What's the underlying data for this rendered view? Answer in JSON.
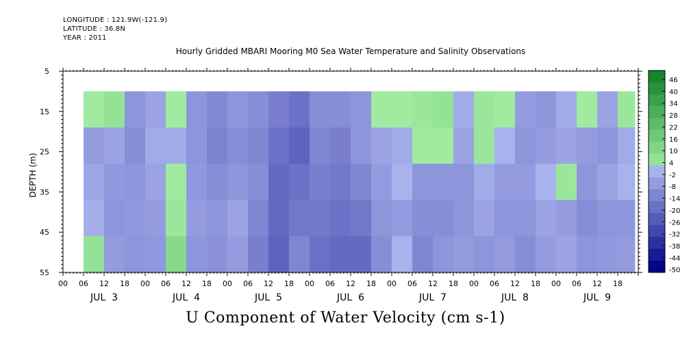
{
  "meta": {
    "longitude": "LONGITUDE : 121.9W(-121.9)",
    "latitude": "LATITUDE : 36.8N",
    "year": "YEAR : 2011"
  },
  "chart_data": {
    "type": "heatmap",
    "title": "Hourly Gridded MBARI Mooring M0 Sea Water Temperature and Salinity Observations",
    "variable_label": "U Component of Water Velocity (cm s-1)",
    "ylabel": "DEPTH (m)",
    "ylim": [
      55,
      5
    ],
    "y_ticks": [
      5,
      15,
      25,
      35,
      45,
      55
    ],
    "x_hour_ticks": [
      "00",
      "06",
      "12",
      "18",
      "00",
      "06",
      "12",
      "18",
      "00",
      "06",
      "12",
      "18",
      "00",
      "06",
      "12",
      "18",
      "00",
      "06",
      "12",
      "18",
      "00",
      "06",
      "12",
      "18",
      "00",
      "06",
      "12",
      "18"
    ],
    "x_day_labels": [
      "JUL  3",
      "JUL  4",
      "JUL  5",
      "JUL  6",
      "JUL  7",
      "JUL  8",
      "JUL  9"
    ],
    "colorbar": {
      "ticks": [
        "46",
        "40",
        "34",
        "28",
        "22",
        "16",
        "10",
        "4",
        "-2",
        "-8",
        "-14",
        "-20",
        "-26",
        "-32",
        "-38",
        "-44",
        "-50"
      ],
      "range": [
        -50,
        50
      ],
      "step": 6
    },
    "data_extent": {
      "depth_top_m": 10,
      "depth_bottom_m": 55,
      "start": "JUL 3 06:00",
      "end": "JUL 9 23:00"
    },
    "columns": [
      {
        "t": "JUL 3 06",
        "u": [
          0,
          -8,
          -5,
          -3,
          4
        ]
      },
      {
        "t": "JUL 3 12",
        "u": [
          4,
          -6,
          -9,
          -10,
          -8
        ]
      },
      {
        "t": "JUL 3 18",
        "u": [
          -10,
          -12,
          -10,
          -9,
          -10
        ]
      },
      {
        "t": "JUL 4 00",
        "u": [
          -6,
          -4,
          -6,
          -8,
          -9
        ]
      },
      {
        "t": "JUL 4 06",
        "u": [
          0,
          -4,
          0,
          2,
          8
        ]
      },
      {
        "t": "JUL 4 12",
        "u": [
          -10,
          -10,
          -9,
          -8,
          -10
        ]
      },
      {
        "t": "JUL 4 18",
        "u": [
          -13,
          -15,
          -12,
          -10,
          -11
        ]
      },
      {
        "t": "JUL 5 00",
        "u": [
          -10,
          -12,
          -10,
          -6,
          -8
        ]
      },
      {
        "t": "JUL 5 06",
        "u": [
          -12,
          -14,
          -12,
          -14,
          -16
        ]
      },
      {
        "t": "JUL 5 12",
        "u": [
          -16,
          -20,
          -22,
          -22,
          -24
        ]
      },
      {
        "t": "JUL 5 18",
        "u": [
          -20,
          -24,
          -20,
          -18,
          -14
        ]
      },
      {
        "t": "JUL 6 00",
        "u": [
          -12,
          -14,
          -16,
          -18,
          -20
        ]
      },
      {
        "t": "JUL 6 06",
        "u": [
          -12,
          -16,
          -18,
          -20,
          -22
        ]
      },
      {
        "t": "JUL 6 12",
        "u": [
          -10,
          -10,
          -14,
          -18,
          -22
        ]
      },
      {
        "t": "JUL 6 18",
        "u": [
          0,
          -6,
          -8,
          -10,
          -12
        ]
      },
      {
        "t": "JUL 7 00",
        "u": [
          0,
          -4,
          -2,
          -8,
          -2
        ]
      },
      {
        "t": "JUL 7 06",
        "u": [
          2,
          0,
          -10,
          -12,
          -14
        ]
      },
      {
        "t": "JUL 7 12",
        "u": [
          4,
          0,
          -10,
          -12,
          -10
        ]
      },
      {
        "t": "JUL 7 18",
        "u": [
          -4,
          -6,
          -10,
          -10,
          -8
        ]
      },
      {
        "t": "JUL 8 00",
        "u": [
          2,
          2,
          -4,
          -6,
          -10
        ]
      },
      {
        "t": "JUL 8 06",
        "u": [
          0,
          -2,
          -8,
          -10,
          -8
        ]
      },
      {
        "t": "JUL 8 12",
        "u": [
          -8,
          -10,
          -8,
          -10,
          -12
        ]
      },
      {
        "t": "JUL 8 18",
        "u": [
          -10,
          -8,
          -2,
          -6,
          -8
        ]
      },
      {
        "t": "JUL 9 00",
        "u": [
          -4,
          -6,
          2,
          -8,
          -6
        ]
      },
      {
        "t": "JUL 9 06",
        "u": [
          0,
          -8,
          -10,
          -12,
          -10
        ]
      },
      {
        "t": "JUL 9 12",
        "u": [
          -6,
          -10,
          -6,
          -10,
          -9
        ]
      },
      {
        "t": "JUL 9 18",
        "u": [
          2,
          -4,
          -2,
          -10,
          -8
        ]
      }
    ]
  }
}
